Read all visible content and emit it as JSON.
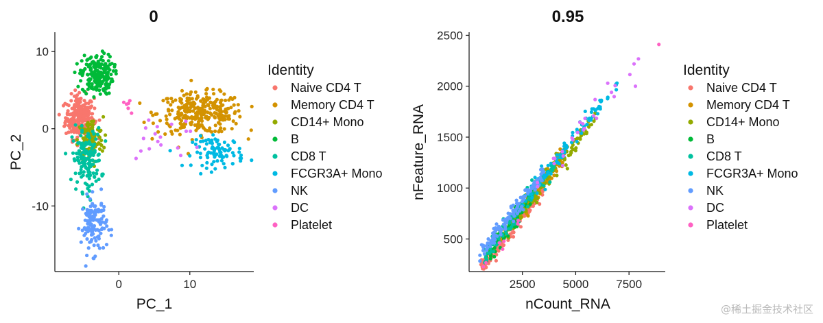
{
  "identities": [
    {
      "name": "Naive CD4 T",
      "color": "#F8766D"
    },
    {
      "name": "Memory CD4 T",
      "color": "#D39200"
    },
    {
      "name": "CD14+ Mono",
      "color": "#93AA00"
    },
    {
      "name": "B",
      "color": "#00BA38"
    },
    {
      "name": "CD8 T",
      "color": "#00C19F"
    },
    {
      "name": "FCGR3A+ Mono",
      "color": "#00B9E3"
    },
    {
      "name": "NK",
      "color": "#619CFF"
    },
    {
      "name": "DC",
      "color": "#DB72FB"
    },
    {
      "name": "Platelet",
      "color": "#FF61C3"
    }
  ],
  "chart_data": [
    {
      "type": "scatter",
      "title": "0",
      "xlabel": "PC_1",
      "ylabel": "PC_2",
      "xlim": [
        -9,
        19
      ],
      "ylim": [
        -18.5,
        12.5
      ],
      "xticks": [
        0,
        10
      ],
      "yticks": [
        10,
        0,
        -10
      ],
      "legend_title": "Identity",
      "legend_position": "right",
      "clusters": [
        {
          "identity": "Naive CD4 T",
          "center": [
            -5.5,
            1.5
          ],
          "spread": [
            1.0,
            1.4
          ],
          "n": 260
        },
        {
          "identity": "Memory CD4 T",
          "center": [
            11.5,
            2.0
          ],
          "spread": [
            3.0,
            1.3
          ],
          "n": 300
        },
        {
          "identity": "CD14+ Mono",
          "center": [
            -4.0,
            -1.5
          ],
          "spread": [
            0.9,
            1.5
          ],
          "n": 110
        },
        {
          "identity": "B",
          "center": [
            -3.0,
            7.0
          ],
          "spread": [
            1.1,
            1.3
          ],
          "n": 200
        },
        {
          "identity": "CD8 T",
          "center": [
            -4.5,
            -4.0
          ],
          "spread": [
            1.0,
            2.0
          ],
          "n": 150
        },
        {
          "identity": "FCGR3A+ Mono",
          "center": [
            14.0,
            -3.0
          ],
          "spread": [
            1.8,
            1.0
          ],
          "n": 90
        },
        {
          "identity": "NK",
          "center": [
            -3.5,
            -12.5
          ],
          "spread": [
            0.9,
            1.8
          ],
          "n": 120
        },
        {
          "identity": "DC",
          "center": [
            6.0,
            -1.0
          ],
          "spread": [
            3.0,
            2.0
          ],
          "n": 18
        },
        {
          "identity": "Platelet",
          "center": [
            1.5,
            3.5
          ],
          "spread": [
            0.8,
            0.6
          ],
          "n": 6
        }
      ]
    },
    {
      "type": "scatter",
      "title": "0.95",
      "xlabel": "nCount_RNA",
      "ylabel": "nFeature_RNA",
      "xlim": [
        0,
        9200
      ],
      "ylim": [
        180,
        2530
      ],
      "xticks": [
        2500,
        5000,
        7500
      ],
      "yticks": [
        500,
        1000,
        1500,
        2000,
        2500
      ],
      "legend_title": "Identity",
      "legend_position": "right",
      "trend": {
        "x_range": [
          500,
          8900
        ],
        "y_at_min": 250,
        "slope": 0.27
      },
      "outliers": [
        [
          8900,
          2410
        ],
        [
          7800,
          2000
        ],
        [
          6500,
          2030
        ]
      ],
      "clusters": [
        {
          "identity": "Naive CD4 T",
          "x_range": [
            500,
            3500
          ],
          "offset": -60,
          "n": 200
        },
        {
          "identity": "Memory CD4 T",
          "x_range": [
            1500,
            4500
          ],
          "offset": 0,
          "n": 180
        },
        {
          "identity": "CD14+ Mono",
          "x_range": [
            1500,
            6000
          ],
          "offset": -20,
          "n": 130
        },
        {
          "identity": "B",
          "x_range": [
            800,
            3000
          ],
          "offset": 10,
          "n": 80
        },
        {
          "identity": "CD8 T",
          "x_range": [
            700,
            4000
          ],
          "offset": 40,
          "n": 120
        },
        {
          "identity": "FCGR3A+ Mono",
          "x_range": [
            2500,
            7000
          ],
          "offset": 60,
          "n": 100
        },
        {
          "identity": "NK",
          "x_range": [
            500,
            3500
          ],
          "offset": 90,
          "n": 120
        },
        {
          "identity": "DC",
          "x_range": [
            3000,
            8000
          ],
          "offset": 40,
          "n": 25
        },
        {
          "identity": "Platelet",
          "x_range": [
            500,
            2500
          ],
          "offset": -80,
          "n": 8
        }
      ]
    }
  ],
  "watermark": "@稀土掘金技术社区"
}
